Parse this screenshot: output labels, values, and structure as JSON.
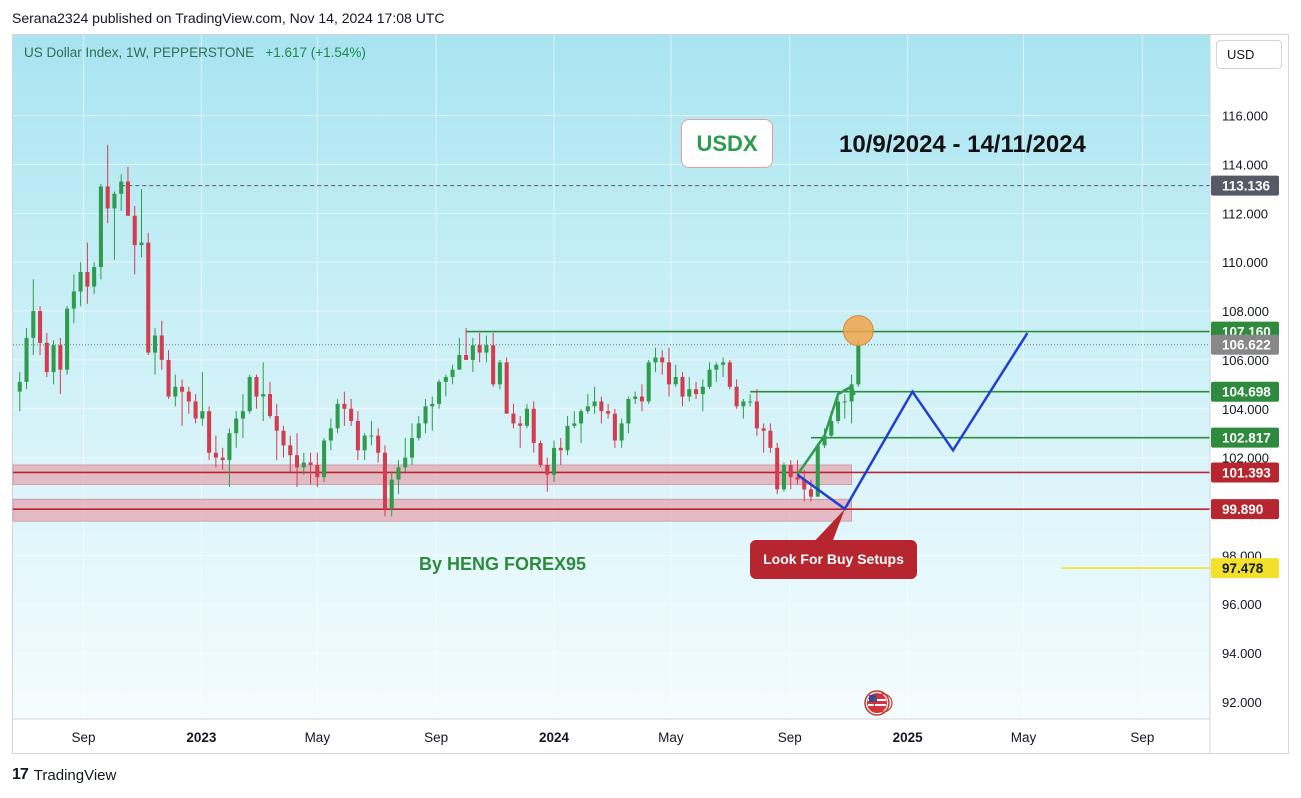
{
  "header": {
    "published": "Serana2324 published on TradingView.com, Nov 14, 2024 17:08 UTC"
  },
  "symbol": {
    "name": "US Dollar Index, 1W, PEPPERSTONE",
    "change": "+1.617 (+1.54%)"
  },
  "currency_button": "USD",
  "annotations": {
    "title_box": "USDX",
    "date_range": "10/9/2024 - 14/11/2024",
    "author": "By HENG FOREX95",
    "note": "Look For Buy Setups"
  },
  "footer": {
    "brand_mark": "17",
    "brand": "TradingView"
  },
  "colors": {
    "up": "#2e9c4c",
    "down": "#d33d4f",
    "support_zone": "#e88a98",
    "forecast": "#1f3fd1",
    "level_green": "#2e8b3e",
    "level_red": "#b7262e",
    "current_price": "#888888",
    "high_label": "#555a66",
    "yellow": "#f3e02a"
  },
  "chart_data": {
    "type": "candlestick",
    "title": "US Dollar Index, 1W, PEPPERSTONE",
    "x_ticks": [
      {
        "label": "Sep",
        "date": "2022-09"
      },
      {
        "label": "2023",
        "date": "2023-01"
      },
      {
        "label": "May",
        "date": "2023-05"
      },
      {
        "label": "Sep",
        "date": "2023-09"
      },
      {
        "label": "2024",
        "date": "2024-01"
      },
      {
        "label": "May",
        "date": "2024-05"
      },
      {
        "label": "Sep",
        "date": "2024-09"
      },
      {
        "label": "2025",
        "date": "2025-01"
      },
      {
        "label": "May",
        "date": "2025-05"
      },
      {
        "label": "Sep",
        "date": "2025-09"
      }
    ],
    "y_ticks": [
      "116.000",
      "114.000",
      "112.000",
      "110.000",
      "108.000",
      "106.000",
      "104.000",
      "102.000",
      "98.000",
      "96.000",
      "94.000",
      "92.000"
    ],
    "ylim": [
      91.3,
      119.3
    ],
    "x_range": [
      "2022-06-20",
      "2025-11-10"
    ],
    "candles": [
      [
        "2022-06-27",
        104.7,
        105.5,
        103.9,
        105.1
      ],
      [
        "2022-07-04",
        105.1,
        107.3,
        104.8,
        106.9
      ],
      [
        "2022-07-11",
        106.9,
        109.3,
        106.2,
        108.0
      ],
      [
        "2022-07-18",
        108.0,
        108.2,
        106.2,
        106.7
      ],
      [
        "2022-07-25",
        106.7,
        107.1,
        105.3,
        105.5
      ],
      [
        "2022-08-01",
        105.5,
        106.8,
        105.0,
        106.6
      ],
      [
        "2022-08-08",
        106.6,
        106.9,
        104.6,
        105.6
      ],
      [
        "2022-08-15",
        105.6,
        108.2,
        105.4,
        108.1
      ],
      [
        "2022-08-22",
        108.1,
        109.5,
        107.5,
        108.8
      ],
      [
        "2022-08-29",
        108.8,
        110.0,
        108.2,
        109.6
      ],
      [
        "2022-09-05",
        109.6,
        110.8,
        108.3,
        109.0
      ],
      [
        "2022-09-12",
        109.0,
        110.0,
        108.7,
        109.8
      ],
      [
        "2022-09-19",
        109.8,
        113.2,
        109.3,
        113.1
      ],
      [
        "2022-09-26",
        113.1,
        114.8,
        111.6,
        112.2
      ],
      [
        "2022-10-03",
        112.2,
        112.9,
        110.1,
        112.8
      ],
      [
        "2022-10-10",
        112.8,
        113.6,
        112.1,
        113.3
      ],
      [
        "2022-10-17",
        113.3,
        113.9,
        111.9,
        111.9
      ],
      [
        "2022-10-24",
        111.9,
        112.3,
        109.5,
        110.7
      ],
      [
        "2022-10-31",
        110.7,
        113.0,
        110.2,
        110.8
      ],
      [
        "2022-11-07",
        110.8,
        111.2,
        106.2,
        106.3
      ],
      [
        "2022-11-14",
        106.3,
        107.3,
        105.4,
        107.0
      ],
      [
        "2022-11-21",
        107.0,
        107.6,
        105.6,
        106.0
      ],
      [
        "2022-11-28",
        106.0,
        106.4,
        104.4,
        104.5
      ],
      [
        "2022-12-05",
        104.5,
        105.4,
        104.1,
        104.9
      ],
      [
        "2022-12-12",
        104.9,
        105.2,
        103.3,
        104.7
      ],
      [
        "2022-12-19",
        104.7,
        104.9,
        103.8,
        104.3
      ],
      [
        "2022-12-26",
        104.3,
        104.6,
        103.4,
        103.6
      ],
      [
        "2023-01-02",
        103.6,
        105.5,
        103.3,
        103.9
      ],
      [
        "2023-01-09",
        103.9,
        104.1,
        101.9,
        102.2
      ],
      [
        "2023-01-16",
        102.2,
        102.9,
        101.6,
        102.0
      ],
      [
        "2023-01-23",
        102.0,
        102.4,
        101.5,
        101.9
      ],
      [
        "2023-01-30",
        101.9,
        103.2,
        100.8,
        103.0
      ],
      [
        "2023-02-06",
        103.0,
        103.9,
        102.4,
        103.6
      ],
      [
        "2023-02-13",
        103.6,
        104.6,
        102.8,
        103.9
      ],
      [
        "2023-02-20",
        103.9,
        105.4,
        103.8,
        105.3
      ],
      [
        "2023-02-27",
        105.3,
        105.4,
        104.0,
        104.5
      ],
      [
        "2023-03-06",
        104.5,
        105.9,
        103.5,
        104.6
      ],
      [
        "2023-03-13",
        104.6,
        105.1,
        103.6,
        103.7
      ],
      [
        "2023-03-20",
        103.7,
        104.2,
        101.9,
        103.1
      ],
      [
        "2023-03-27",
        103.1,
        103.3,
        102.0,
        102.5
      ],
      [
        "2023-04-03",
        102.5,
        102.9,
        101.4,
        102.1
      ],
      [
        "2023-04-10",
        102.1,
        103.0,
        100.8,
        101.6
      ],
      [
        "2023-04-17",
        101.6,
        102.2,
        101.3,
        101.8
      ],
      [
        "2023-04-24",
        101.8,
        102.2,
        100.9,
        101.7
      ],
      [
        "2023-05-01",
        101.7,
        102.2,
        100.8,
        101.2
      ],
      [
        "2023-05-08",
        101.2,
        102.8,
        101.0,
        102.7
      ],
      [
        "2023-05-15",
        102.7,
        103.6,
        102.3,
        103.2
      ],
      [
        "2023-05-22",
        103.2,
        104.4,
        103.0,
        104.2
      ],
      [
        "2023-05-29",
        104.2,
        104.7,
        103.3,
        104.0
      ],
      [
        "2023-06-05",
        104.0,
        104.4,
        103.3,
        103.5
      ],
      [
        "2023-06-12",
        103.5,
        103.9,
        101.9,
        102.3
      ],
      [
        "2023-06-19",
        102.3,
        103.0,
        101.9,
        102.9
      ],
      [
        "2023-06-26",
        102.9,
        103.5,
        102.5,
        102.9
      ],
      [
        "2023-07-03",
        102.9,
        103.2,
        101.8,
        102.2
      ],
      [
        "2023-07-10",
        102.2,
        102.5,
        99.6,
        99.9
      ],
      [
        "2023-07-17",
        99.9,
        101.4,
        99.6,
        101.1
      ],
      [
        "2023-07-24",
        101.1,
        101.9,
        100.5,
        101.6
      ],
      [
        "2023-07-31",
        101.6,
        102.8,
        101.4,
        102.0
      ],
      [
        "2023-08-07",
        102.0,
        103.4,
        101.7,
        102.8
      ],
      [
        "2023-08-14",
        102.8,
        103.7,
        102.7,
        103.4
      ],
      [
        "2023-08-21",
        103.4,
        104.4,
        103.0,
        104.1
      ],
      [
        "2023-08-28",
        104.1,
        104.5,
        103.1,
        104.2
      ],
      [
        "2023-09-04",
        104.2,
        105.2,
        104.0,
        105.1
      ],
      [
        "2023-09-11",
        105.1,
        105.4,
        104.5,
        105.3
      ],
      [
        "2023-09-18",
        105.3,
        105.8,
        105.0,
        105.6
      ],
      [
        "2023-09-25",
        105.6,
        106.9,
        105.6,
        106.2
      ],
      [
        "2023-10-02",
        106.2,
        107.3,
        106.0,
        106.0
      ],
      [
        "2023-10-09",
        106.0,
        106.9,
        105.5,
        106.6
      ],
      [
        "2023-10-16",
        106.6,
        107.1,
        105.9,
        106.3
      ],
      [
        "2023-10-23",
        106.3,
        107.0,
        105.9,
        106.6
      ],
      [
        "2023-10-30",
        106.6,
        107.1,
        104.9,
        105.0
      ],
      [
        "2023-11-06",
        105.0,
        106.0,
        104.8,
        105.9
      ],
      [
        "2023-11-13",
        105.9,
        106.1,
        103.8,
        103.8
      ],
      [
        "2023-11-20",
        103.8,
        104.2,
        103.2,
        103.4
      ],
      [
        "2023-11-27",
        103.4,
        103.7,
        102.4,
        103.3
      ],
      [
        "2023-12-04",
        103.3,
        104.2,
        103.2,
        104.0
      ],
      [
        "2023-12-11",
        104.0,
        104.3,
        102.2,
        102.6
      ],
      [
        "2023-12-18",
        102.6,
        102.7,
        101.6,
        101.7
      ],
      [
        "2023-12-25",
        101.7,
        102.0,
        100.6,
        101.3
      ],
      [
        "2024-01-01",
        101.3,
        102.7,
        101.0,
        102.4
      ],
      [
        "2024-01-08",
        102.4,
        102.8,
        101.7,
        102.3
      ],
      [
        "2024-01-15",
        102.3,
        103.7,
        102.1,
        103.3
      ],
      [
        "2024-01-22",
        103.3,
        103.9,
        103.2,
        103.4
      ],
      [
        "2024-01-29",
        103.4,
        104.0,
        102.6,
        103.9
      ],
      [
        "2024-02-05",
        103.9,
        104.6,
        103.8,
        104.1
      ],
      [
        "2024-02-12",
        104.1,
        104.9,
        103.8,
        104.3
      ],
      [
        "2024-02-19",
        104.3,
        104.5,
        103.4,
        103.9
      ],
      [
        "2024-02-26",
        103.9,
        104.2,
        103.6,
        103.8
      ],
      [
        "2024-03-04",
        103.8,
        104.0,
        102.4,
        102.7
      ],
      [
        "2024-03-11",
        102.7,
        103.6,
        102.4,
        103.4
      ],
      [
        "2024-03-18",
        103.4,
        104.5,
        103.0,
        104.4
      ],
      [
        "2024-03-25",
        104.4,
        104.7,
        104.2,
        104.5
      ],
      [
        "2024-04-01",
        104.5,
        105.0,
        103.9,
        104.3
      ],
      [
        "2024-04-08",
        104.3,
        106.0,
        104.2,
        105.9
      ],
      [
        "2024-04-15",
        105.9,
        106.5,
        105.5,
        106.1
      ],
      [
        "2024-04-22",
        106.1,
        106.4,
        105.4,
        105.9
      ],
      [
        "2024-04-29",
        105.9,
        106.5,
        104.5,
        105.0
      ],
      [
        "2024-05-06",
        105.0,
        105.8,
        104.9,
        105.3
      ],
      [
        "2024-05-13",
        105.3,
        105.5,
        104.1,
        104.5
      ],
      [
        "2024-05-20",
        104.5,
        105.3,
        104.3,
        104.8
      ],
      [
        "2024-05-27",
        104.8,
        105.1,
        104.4,
        104.6
      ],
      [
        "2024-06-03",
        104.6,
        105.2,
        103.9,
        104.9
      ],
      [
        "2024-06-10",
        104.9,
        105.9,
        104.8,
        105.6
      ],
      [
        "2024-06-17",
        105.6,
        105.9,
        105.1,
        105.8
      ],
      [
        "2024-06-24",
        105.8,
        106.1,
        105.3,
        105.9
      ],
      [
        "2024-07-01",
        105.9,
        106.0,
        104.8,
        104.9
      ],
      [
        "2024-07-08",
        104.9,
        105.2,
        104.0,
        104.1
      ],
      [
        "2024-07-15",
        104.1,
        104.4,
        103.6,
        104.3
      ],
      [
        "2024-07-22",
        104.3,
        104.6,
        104.1,
        104.3
      ],
      [
        "2024-07-29",
        104.3,
        104.8,
        102.9,
        103.2
      ],
      [
        "2024-08-05",
        103.2,
        103.4,
        102.2,
        103.1
      ],
      [
        "2024-08-12",
        103.1,
        103.4,
        102.2,
        102.4
      ],
      [
        "2024-08-19",
        102.4,
        102.6,
        100.5,
        100.7
      ],
      [
        "2024-08-26",
        100.7,
        101.8,
        100.6,
        101.7
      ],
      [
        "2024-09-02",
        101.7,
        101.9,
        100.7,
        101.2
      ],
      [
        "2024-09-09",
        101.2,
        101.9,
        100.9,
        101.1
      ],
      [
        "2024-09-16",
        101.1,
        101.5,
        100.2,
        100.7
      ],
      [
        "2024-09-23",
        100.7,
        101.1,
        100.2,
        100.4
      ],
      [
        "2024-09-30",
        100.4,
        102.6,
        100.4,
        102.5
      ],
      [
        "2024-10-07",
        102.5,
        103.2,
        102.4,
        102.9
      ],
      [
        "2024-10-14",
        102.9,
        103.9,
        102.8,
        103.5
      ],
      [
        "2024-10-21",
        103.5,
        104.6,
        103.4,
        104.3
      ],
      [
        "2024-10-28",
        104.3,
        104.6,
        103.6,
        104.3
      ],
      [
        "2024-11-04",
        104.3,
        105.4,
        103.4,
        105.0
      ],
      [
        "2024-11-11",
        105.0,
        106.8,
        104.9,
        106.6
      ]
    ],
    "levels": [
      {
        "price": 113.136,
        "label": "113.136",
        "style": "dashed"
      },
      {
        "price": 107.16,
        "label": "107.160",
        "from": "2023-10-02"
      },
      {
        "price": 106.622,
        "label": "106.622",
        "style": "dotted",
        "current": true
      },
      {
        "price": 104.698,
        "label": "104.698",
        "from": "2024-07-22"
      },
      {
        "price": 102.817,
        "label": "102.817",
        "from": "2024-09-23"
      },
      {
        "price": 101.393,
        "label": "101.393"
      },
      {
        "price": 99.89,
        "label": "99.890"
      },
      {
        "price": 97.478,
        "label": "97.478",
        "from": "2025-06-09"
      }
    ],
    "support_zones": [
      [
        100.9,
        101.7
      ],
      [
        99.4,
        100.3
      ]
    ],
    "forecast_path": [
      [
        "2024-09-09",
        101.3
      ],
      [
        "2024-10-28",
        99.9
      ],
      [
        "2025-01-06",
        104.7
      ],
      [
        "2025-02-17",
        102.3
      ],
      [
        "2025-05-05",
        107.1
      ]
    ],
    "sketch_path": [
      [
        "2024-09-09",
        101.3
      ],
      [
        "2024-10-07",
        102.9
      ],
      [
        "2024-10-21",
        104.6
      ],
      [
        "2024-11-04",
        104.9
      ]
    ],
    "circle_marker": {
      "date": "2024-11-11",
      "price": 107.2
    }
  }
}
